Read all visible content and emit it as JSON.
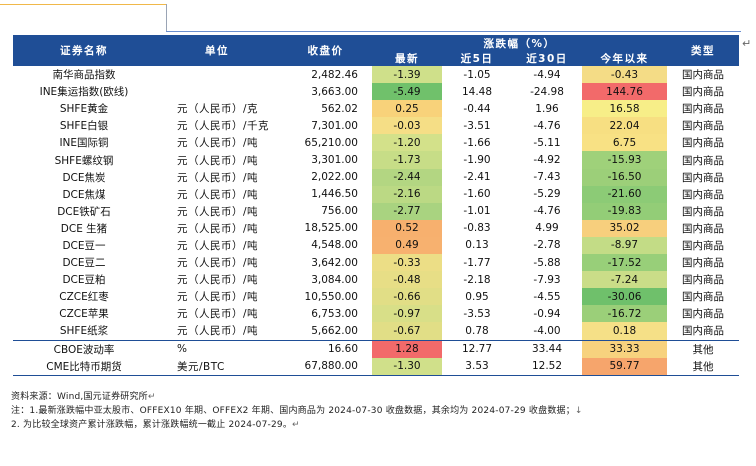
{
  "header": {
    "col_name": "证券名称",
    "col_unit": "单位",
    "col_price": "收盘价",
    "col_change_group": "涨跌幅（%）",
    "col_latest": "最新",
    "col_5d": "近5日",
    "col_30d": "近30日",
    "col_ytd": "今年以来",
    "col_type": "类型"
  },
  "rows": [
    {
      "name": "南华商品指数",
      "unit": "",
      "price": "2,482.46",
      "latest": "-1.39",
      "d5": "-1.05",
      "d30": "-4.94",
      "ytd": "-0.43",
      "type": "国内商品",
      "c_latest": "#cfe08a",
      "c_ytd": "#f4dc86"
    },
    {
      "name": "INE集运指数(欧线)",
      "unit": "",
      "price": "3,663.00",
      "latest": "-5.49",
      "d5": "14.48",
      "d30": "-24.98",
      "ytd": "144.76",
      "type": "国内商品",
      "c_latest": "#70c16b",
      "c_ytd": "#f26a6a"
    },
    {
      "name": "SHFE黄金",
      "unit": "元（人民币）/克",
      "price": "562.02",
      "latest": "0.25",
      "d5": "-0.44",
      "d30": "1.96",
      "ytd": "16.58",
      "type": "国内商品",
      "c_latest": "#f8d27a",
      "c_ytd": "#f7ee88"
    },
    {
      "name": "SHFE白银",
      "unit": "元（人民币）/千克",
      "price": "7,301.00",
      "latest": "-0.03",
      "d5": "-3.51",
      "d30": "-4.76",
      "ytd": "22.04",
      "type": "国内商品",
      "c_latest": "#f5de86",
      "c_ytd": "#f7df82"
    },
    {
      "name": "INE国际铜",
      "unit": "元（人民币）/吨",
      "price": "65,210.00",
      "latest": "-1.20",
      "d5": "-1.66",
      "d30": "-5.11",
      "ytd": "6.75",
      "type": "国内商品",
      "c_latest": "#d3e18a",
      "c_ytd": "#f8e184"
    },
    {
      "name": "SHFE螺纹钢",
      "unit": "元（人民币）/吨",
      "price": "3,301.00",
      "latest": "-1.73",
      "d5": "-1.90",
      "d30": "-4.92",
      "ytd": "-15.93",
      "type": "国内商品",
      "c_latest": "#c7dd87",
      "c_ytd": "#9fd17a"
    },
    {
      "name": "DCE焦炭",
      "unit": "元（人民币）/吨",
      "price": "2,022.00",
      "latest": "-2.44",
      "d5": "-2.41",
      "d30": "-7.43",
      "ytd": "-16.50",
      "type": "国内商品",
      "c_latest": "#b3d682",
      "c_ytd": "#9ccf79"
    },
    {
      "name": "DCE焦煤",
      "unit": "元（人民币）/吨",
      "price": "1,446.50",
      "latest": "-2.16",
      "d5": "-1.60",
      "d30": "-5.29",
      "ytd": "-21.60",
      "type": "国内商品",
      "c_latest": "#bbd984",
      "c_ytd": "#8ccb76"
    },
    {
      "name": "DCE铁矿石",
      "unit": "元（人民币）/吨",
      "price": "756.00",
      "latest": "-2.77",
      "d5": "-1.01",
      "d30": "-4.76",
      "ytd": "-19.83",
      "type": "国内商品",
      "c_latest": "#a9d380",
      "c_ytd": "#93cd77"
    },
    {
      "name": "DCE 生猪",
      "unit": "元（人民币）/吨",
      "price": "18,525.00",
      "latest": "0.52",
      "d5": "-0.83",
      "d30": "4.99",
      "ytd": "35.02",
      "type": "国内商品",
      "c_latest": "#f7b06e",
      "c_ytd": "#f7cf7d"
    },
    {
      "name": "DCE豆一",
      "unit": "元（人民币）/吨",
      "price": "4,548.00",
      "latest": "0.49",
      "d5": "0.13",
      "d30": "-2.78",
      "ytd": "-8.97",
      "type": "国内商品",
      "c_latest": "#f7b16f",
      "c_ytd": "#c3dc86"
    },
    {
      "name": "DCE豆二",
      "unit": "元（人民币）/吨",
      "price": "3,642.00",
      "latest": "-0.33",
      "d5": "-1.77",
      "d30": "-5.88",
      "ytd": "-17.52",
      "type": "国内商品",
      "c_latest": "#ecde86",
      "c_ytd": "#98cf79"
    },
    {
      "name": "DCE豆粕",
      "unit": "元（人民币）/吨",
      "price": "3,084.00",
      "latest": "-0.48",
      "d5": "-2.18",
      "d30": "-7.93",
      "ytd": "-7.24",
      "type": "国内商品",
      "c_latest": "#e7de86",
      "c_ytd": "#cadd88"
    },
    {
      "name": "CZCE红枣",
      "unit": "元（人民币）/吨",
      "price": "10,550.00",
      "latest": "-0.66",
      "d5": "0.95",
      "d30": "-4.55",
      "ytd": "-30.06",
      "type": "国内商品",
      "c_latest": "#e1de86",
      "c_ytd": "#6fc06b"
    },
    {
      "name": "CZCE苹果",
      "unit": "元（人民币）/吨",
      "price": "6,753.00",
      "latest": "-0.97",
      "d5": "-3.53",
      "d30": "-0.94",
      "ytd": "-16.72",
      "type": "国内商品",
      "c_latest": "#d8df88",
      "c_ytd": "#9bcf79"
    },
    {
      "name": "SHFE纸浆",
      "unit": "元（人民币）/吨",
      "price": "5,662.00",
      "latest": "-0.67",
      "d5": "0.78",
      "d30": "-4.00",
      "ytd": "0.18",
      "type": "国内商品",
      "c_latest": "#e1de86",
      "c_ytd": "#f5e087"
    },
    {
      "name": "CBOE波动率",
      "unit": "%",
      "price": "16.60",
      "latest": "1.28",
      "d5": "12.77",
      "d30": "33.44",
      "ytd": "33.33",
      "type": "其他",
      "c_latest": "#f26a6a",
      "c_ytd": "#f7d27e"
    },
    {
      "name": "CME比特币期货",
      "unit": "美元/BTC",
      "price": "67,880.00",
      "latest": "-1.30",
      "d5": "3.53",
      "d30": "12.52",
      "ytd": "59.77",
      "type": "其他",
      "c_latest": "#d0e08a",
      "c_ytd": "#f6a56c"
    }
  ],
  "footer": {
    "source": "资料来源：Wind,国元证券研究所",
    "note1": "注：1.最新涨跌幅中亚太股市、OFFEX10 年期、OFFEX2 年期、国内商品为 2024-07-30 收盘数据，其余均为 2024-07-29 收盘数据；",
    "note2": "2. 为比较全球资产累计涨跌幅，累计涨跌幅统一截止 2024-07-29。",
    "para_mark": "↵",
    "list_mark": "↓"
  }
}
